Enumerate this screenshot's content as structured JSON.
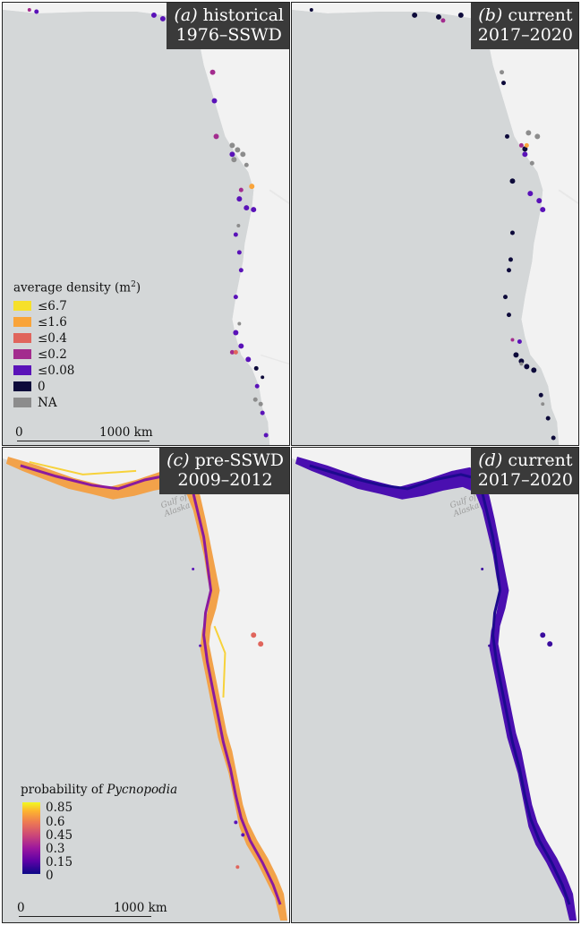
{
  "panels": {
    "a": {
      "tag": "(a)",
      "title": "historical",
      "period": "1976–SSWD"
    },
    "b": {
      "tag": "(b)",
      "title": "current",
      "period": "2017–2020"
    },
    "c": {
      "tag": "(c)",
      "title": "pre-SSWD",
      "period": "2009–2012"
    },
    "d": {
      "tag": "(d)",
      "title": "current",
      "period": "2017–2020"
    }
  },
  "density_legend": {
    "title": "average density (m",
    "title_sup": "2",
    "title_end": ")",
    "items": [
      {
        "label": "≤6.7",
        "color": "#f6e02a"
      },
      {
        "label": "≤1.6",
        "color": "#f9a43a"
      },
      {
        "label": "≤0.4",
        "color": "#e0655c"
      },
      {
        "label": "≤0.2",
        "color": "#a32c8e"
      },
      {
        "label": "≤0.08",
        "color": "#5a12b8"
      },
      {
        "label": "0",
        "color": "#0d0a3a"
      },
      {
        "label": "NA",
        "color": "#8c8c8c"
      }
    ]
  },
  "probability_legend": {
    "title": "probability of ",
    "title_species": "Pycnopodia",
    "ticks": [
      "0.85",
      "0.6",
      "0.45",
      "0.3",
      "0.15",
      "0"
    ]
  },
  "scale_bar": {
    "start": "0",
    "end": "1000 km"
  },
  "place_label": {
    "line1": "Gulf of",
    "line2": "Alaska"
  },
  "colors": {
    "land": "#d4d7d8",
    "ocean": "#f2f2f2",
    "frame": "#222222",
    "label_bg": "#3a3a3a"
  }
}
